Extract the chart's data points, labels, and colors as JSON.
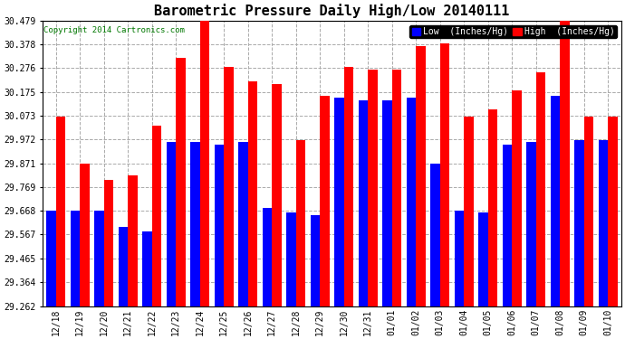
{
  "title": "Barometric Pressure Daily High/Low 20140111",
  "copyright": "Copyright 2014 Cartronics.com",
  "categories": [
    "12/18",
    "12/19",
    "12/20",
    "12/21",
    "12/22",
    "12/23",
    "12/24",
    "12/25",
    "12/26",
    "12/27",
    "12/28",
    "12/29",
    "12/30",
    "12/31",
    "01/01",
    "01/02",
    "01/03",
    "01/04",
    "01/05",
    "01/06",
    "01/07",
    "01/08",
    "01/09",
    "01/10"
  ],
  "low_values": [
    29.67,
    29.67,
    29.67,
    29.6,
    29.58,
    29.96,
    29.96,
    29.95,
    29.96,
    29.68,
    29.66,
    29.65,
    30.15,
    30.14,
    30.14,
    30.15,
    29.87,
    29.67,
    29.66,
    29.95,
    29.96,
    30.16,
    29.97,
    29.97
  ],
  "high_values": [
    30.07,
    29.87,
    29.8,
    29.82,
    30.03,
    30.32,
    30.48,
    30.28,
    30.22,
    30.21,
    29.97,
    30.16,
    30.28,
    30.27,
    30.27,
    30.37,
    30.38,
    30.07,
    30.1,
    30.18,
    30.26,
    30.48,
    30.07,
    30.07
  ],
  "low_color": "#0000ff",
  "high_color": "#ff0000",
  "bg_color": "#ffffff",
  "ylim_min": 29.262,
  "ylim_max": 30.479,
  "yticks": [
    29.262,
    29.364,
    29.465,
    29.567,
    29.668,
    29.769,
    29.871,
    29.972,
    30.073,
    30.175,
    30.276,
    30.378,
    30.479
  ],
  "bar_width": 0.4,
  "legend_low_label": "Low  (Inches/Hg)",
  "legend_high_label": "High  (Inches/Hg)",
  "title_fontsize": 11,
  "tick_fontsize": 7,
  "copyright_fontsize": 6.5
}
